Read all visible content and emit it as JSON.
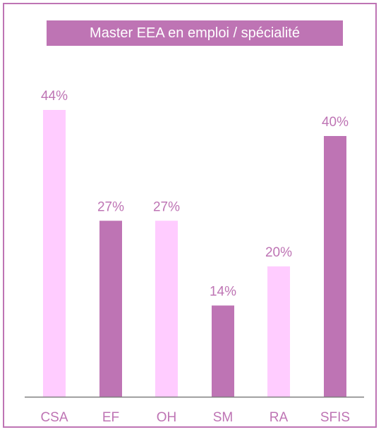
{
  "colors": {
    "frame": "#BE74B4",
    "title_bg": "#BE74B4",
    "title_text": "#FFFFFF",
    "label_text": "#BE74B4",
    "axis": "#7F7F7F",
    "bar_light": "#FFCCFF",
    "bar_dark": "#BE74B4"
  },
  "chart_data": {
    "type": "bar",
    "title": "Master EEA en emploi / spécialité",
    "categories": [
      "CSA",
      "EF",
      "OH",
      "SM",
      "RA",
      "SFIS"
    ],
    "values": [
      44,
      27,
      27,
      14,
      20,
      40
    ],
    "value_labels": [
      "44%",
      "27%",
      "27%",
      "14%",
      "20%",
      "40%"
    ],
    "bar_colors": [
      "#FFCCFF",
      "#BE74B4",
      "#FFCCFF",
      "#BE74B4",
      "#FFCCFF",
      "#BE74B4"
    ],
    "unit": "%",
    "xlabel": "",
    "ylabel": "",
    "ylim": [
      0,
      50
    ],
    "grid": false,
    "legend": "none"
  }
}
